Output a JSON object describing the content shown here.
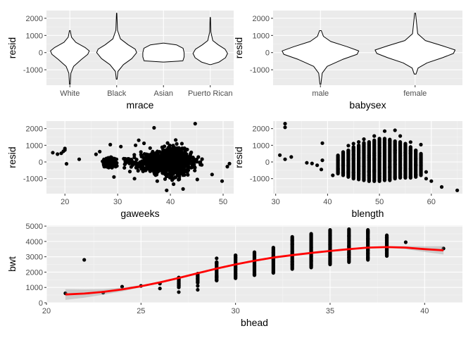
{
  "colors": {
    "panel_bg": "#ebebeb",
    "grid_major": "#ffffff",
    "grid_minor": "#f5f5f5",
    "tick_text": "#4d4d4d",
    "point": "#000000",
    "smooth_line": "#ff0000",
    "ribbon": "#999999"
  },
  "chart_data": [
    {
      "id": "mrace",
      "type": "violin",
      "xlabel": "mrace",
      "ylabel": "resid",
      "categories": [
        "White",
        "Black",
        "Asian",
        "Puerto Rican"
      ],
      "ylim": [
        -1900,
        2450
      ],
      "yticks": [
        -1000,
        0,
        1000,
        2000
      ],
      "grid": true,
      "violins": [
        {
          "category": "White",
          "min": -1850,
          "max": 1280,
          "profile": [
            [
              -1850,
              0.02
            ],
            [
              -1200,
              0.05
            ],
            [
              -800,
              0.18
            ],
            [
              -400,
              0.55
            ],
            [
              -100,
              0.85
            ],
            [
              100,
              0.92
            ],
            [
              300,
              0.72
            ],
            [
              600,
              0.28
            ],
            [
              900,
              0.08
            ],
            [
              1280,
              0.02
            ]
          ]
        },
        {
          "category": "Black",
          "min": -1550,
          "max": 2300,
          "profile": [
            [
              -1550,
              0.02
            ],
            [
              -1100,
              0.06
            ],
            [
              -700,
              0.32
            ],
            [
              -350,
              0.72
            ],
            [
              0,
              0.95
            ],
            [
              200,
              0.88
            ],
            [
              450,
              0.55
            ],
            [
              800,
              0.18
            ],
            [
              1300,
              0.04
            ],
            [
              2300,
              0.01
            ]
          ]
        },
        {
          "category": "Asian",
          "min": -550,
          "max": 550,
          "profile": [
            [
              -550,
              0.02
            ],
            [
              -480,
              0.92
            ],
            [
              -250,
              0.98
            ],
            [
              0,
              0.98
            ],
            [
              250,
              0.93
            ],
            [
              450,
              0.62
            ],
            [
              550,
              0.02
            ]
          ]
        },
        {
          "category": "Puerto Rican",
          "min": -700,
          "max": 2050,
          "profile": [
            [
              -700,
              0.02
            ],
            [
              -550,
              0.42
            ],
            [
              -300,
              0.72
            ],
            [
              -50,
              0.82
            ],
            [
              200,
              0.7
            ],
            [
              450,
              0.38
            ],
            [
              700,
              0.12
            ],
            [
              1200,
              0.03
            ],
            [
              2050,
              0.01
            ]
          ]
        }
      ]
    },
    {
      "id": "babysex",
      "type": "violin",
      "xlabel": "babysex",
      "ylabel": "resid",
      "categories": [
        "male",
        "female"
      ],
      "ylim": [
        -1900,
        2450
      ],
      "yticks": [
        -1000,
        0,
        1000,
        2000
      ],
      "grid": true,
      "violins": [
        {
          "category": "male",
          "min": -1850,
          "max": 1280,
          "profile": [
            [
              -1850,
              0.01
            ],
            [
              -1200,
              0.04
            ],
            [
              -800,
              0.16
            ],
            [
              -400,
              0.52
            ],
            [
              -100,
              0.86
            ],
            [
              100,
              0.9
            ],
            [
              350,
              0.62
            ],
            [
              650,
              0.24
            ],
            [
              950,
              0.07
            ],
            [
              1280,
              0.02
            ]
          ]
        },
        {
          "category": "female",
          "min": -1250,
          "max": 2300,
          "profile": [
            [
              -1250,
              0.02
            ],
            [
              -900,
              0.07
            ],
            [
              -600,
              0.28
            ],
            [
              -300,
              0.64
            ],
            [
              -50,
              0.9
            ],
            [
              150,
              0.94
            ],
            [
              400,
              0.64
            ],
            [
              700,
              0.24
            ],
            [
              1100,
              0.06
            ],
            [
              2300,
              0.01
            ]
          ]
        }
      ]
    },
    {
      "id": "gaweeks",
      "type": "scatter",
      "xlabel": "gaweeks",
      "ylabel": "resid",
      "xlim": [
        16.5,
        52
      ],
      "ylim": [
        -1900,
        2450
      ],
      "xticks": [
        20,
        30,
        40,
        50
      ],
      "yticks": [
        -1000,
        0,
        1000,
        2000
      ],
      "grid": true,
      "points": [
        [
          17.7,
          560
        ],
        [
          18.6,
          470
        ],
        [
          19.3,
          520
        ],
        [
          19.7,
          640
        ],
        [
          20.0,
          810
        ],
        [
          20.0,
          720
        ],
        [
          20.3,
          -110
        ],
        [
          22.7,
          160
        ],
        [
          25.9,
          460
        ],
        [
          26.6,
          620
        ],
        [
          28.6,
          1040
        ],
        [
          30.6,
          920
        ],
        [
          33.4,
          1000
        ],
        [
          34.0,
          1300
        ],
        [
          35.0,
          1120
        ],
        [
          36.9,
          2050
        ],
        [
          41.2,
          1080
        ],
        [
          41.0,
          1320
        ],
        [
          44.7,
          2300
        ],
        [
          39.3,
          -1700
        ],
        [
          42.4,
          -1620
        ],
        [
          40.6,
          -1330
        ],
        [
          37.5,
          -1150
        ],
        [
          45.1,
          -1050
        ],
        [
          49.8,
          -1150
        ],
        [
          29.3,
          -900
        ],
        [
          33.2,
          -1000
        ],
        [
          47.9,
          -750
        ],
        [
          50.8,
          -280
        ],
        [
          51.2,
          -100
        ]
      ],
      "dense_regions": [
        {
          "x": [
            30,
            47
          ],
          "y": [
            -650,
            680
          ]
        },
        {
          "x": [
            27,
            30
          ],
          "y": [
            -350,
            300
          ]
        },
        {
          "x": [
            34,
            45
          ],
          "y": [
            -1000,
            1000
          ]
        },
        {
          "x": [
            37,
            44
          ],
          "y": [
            -1150,
            1200
          ]
        }
      ]
    },
    {
      "id": "blength",
      "type": "scatter",
      "xlabel": "blength",
      "ylabel": "resid",
      "xlim": [
        29.5,
        66
      ],
      "ylim": [
        -1900,
        2450
      ],
      "xticks": [
        30,
        40,
        50,
        60
      ],
      "yticks": [
        -1000,
        0,
        1000,
        2000
      ],
      "grid": true,
      "points": [
        [
          30.8,
          410
        ],
        [
          31.8,
          2300
        ],
        [
          31.8,
          2080
        ],
        [
          31.8,
          160
        ],
        [
          33.0,
          300
        ],
        [
          36.0,
          -50
        ],
        [
          37.0,
          -90
        ],
        [
          38.0,
          -200
        ],
        [
          38.8,
          -450
        ],
        [
          39.0,
          100
        ],
        [
          39.0,
          1130
        ],
        [
          41.0,
          -800
        ],
        [
          44.0,
          980
        ],
        [
          45.0,
          1100
        ],
        [
          46.0,
          1200
        ],
        [
          47.0,
          1370
        ],
        [
          49.0,
          1560
        ],
        [
          51.0,
          1850
        ],
        [
          53.0,
          1900
        ],
        [
          54.0,
          1560
        ],
        [
          56.0,
          1190
        ],
        [
          58.0,
          1040
        ],
        [
          59.0,
          -600
        ],
        [
          59.0,
          -1000
        ],
        [
          60.0,
          -1150
        ],
        [
          62.0,
          -1500
        ],
        [
          65.0,
          -1700
        ]
      ],
      "columns": [
        {
          "x": 42,
          "y": [
            -700,
            400
          ]
        },
        {
          "x": 43,
          "y": [
            -800,
            600
          ]
        },
        {
          "x": 44,
          "y": [
            -900,
            700
          ]
        },
        {
          "x": 45,
          "y": [
            -1000,
            900
          ]
        },
        {
          "x": 46,
          "y": [
            -1050,
            1000
          ]
        },
        {
          "x": 47,
          "y": [
            -1100,
            1150
          ]
        },
        {
          "x": 48,
          "y": [
            -1150,
            1200
          ]
        },
        {
          "x": 49,
          "y": [
            -1150,
            1300
          ]
        },
        {
          "x": 50,
          "y": [
            -1150,
            1400
          ]
        },
        {
          "x": 51,
          "y": [
            -1100,
            1400
          ]
        },
        {
          "x": 52,
          "y": [
            -1100,
            1350
          ]
        },
        {
          "x": 53,
          "y": [
            -1000,
            1250
          ]
        },
        {
          "x": 54,
          "y": [
            -950,
            1200
          ]
        },
        {
          "x": 55,
          "y": [
            -950,
            1100
          ]
        },
        {
          "x": 56,
          "y": [
            -950,
            900
          ]
        },
        {
          "x": 57,
          "y": [
            -900,
            700
          ]
        },
        {
          "x": 58,
          "y": [
            -800,
            500
          ]
        }
      ]
    },
    {
      "id": "bhead",
      "type": "scatter",
      "xlabel": "bhead",
      "ylabel": "bwt",
      "xlim": [
        20,
        42
      ],
      "ylim": [
        0,
        5050
      ],
      "xticks": [
        20,
        25,
        30,
        35,
        40
      ],
      "yticks": [
        0,
        1000,
        2000,
        3000,
        4000,
        5000
      ],
      "grid": true,
      "points": [
        [
          21,
          620
        ],
        [
          22,
          2800
        ],
        [
          23,
          660
        ],
        [
          24,
          1050
        ],
        [
          25,
          1100
        ],
        [
          26,
          1250
        ],
        [
          26,
          930
        ],
        [
          27,
          700
        ],
        [
          27,
          1000
        ],
        [
          28,
          850
        ],
        [
          28,
          1100
        ],
        [
          29,
          2900
        ],
        [
          29,
          1700
        ],
        [
          41,
          3540
        ],
        [
          39,
          3950
        ]
      ],
      "columns": [
        {
          "x": 27,
          "y": [
            1050,
            1650
          ]
        },
        {
          "x": 28,
          "y": [
            1300,
            1900
          ]
        },
        {
          "x": 29,
          "y": [
            1450,
            2650
          ]
        },
        {
          "x": 30,
          "y": [
            1600,
            3100
          ]
        },
        {
          "x": 31,
          "y": [
            1800,
            3300
          ]
        },
        {
          "x": 32,
          "y": [
            1950,
            3600
          ]
        },
        {
          "x": 33,
          "y": [
            2200,
            4300
          ]
        },
        {
          "x": 34,
          "y": [
            2300,
            4500
          ]
        },
        {
          "x": 35,
          "y": [
            2500,
            4750
          ]
        },
        {
          "x": 36,
          "y": [
            2650,
            4800
          ]
        },
        {
          "x": 37,
          "y": [
            2800,
            4750
          ]
        },
        {
          "x": 38,
          "y": [
            3050,
            4400
          ]
        }
      ],
      "smooth": [
        [
          21,
          540
        ],
        [
          22,
          600
        ],
        [
          23,
          710
        ],
        [
          24,
          870
        ],
        [
          25,
          1080
        ],
        [
          26,
          1330
        ],
        [
          27,
          1620
        ],
        [
          28,
          1930
        ],
        [
          29,
          2230
        ],
        [
          30,
          2500
        ],
        [
          31,
          2740
        ],
        [
          32,
          2950
        ],
        [
          33,
          3110
        ],
        [
          34,
          3250
        ],
        [
          35,
          3380
        ],
        [
          36,
          3500
        ],
        [
          37,
          3600
        ],
        [
          38,
          3630
        ],
        [
          39,
          3600
        ],
        [
          40,
          3500
        ],
        [
          41,
          3420
        ]
      ],
      "ribbon_halfwidth": [
        [
          21,
          350
        ],
        [
          22,
          270
        ],
        [
          23,
          180
        ],
        [
          24,
          120
        ],
        [
          25,
          70
        ],
        [
          26,
          50
        ],
        [
          27,
          40
        ],
        [
          28,
          30
        ],
        [
          29,
          25
        ],
        [
          30,
          20
        ],
        [
          31,
          20
        ],
        [
          32,
          20
        ],
        [
          33,
          20
        ],
        [
          34,
          20
        ],
        [
          35,
          20
        ],
        [
          36,
          22
        ],
        [
          37,
          30
        ],
        [
          38,
          50
        ],
        [
          39,
          100
        ],
        [
          40,
          180
        ],
        [
          41,
          270
        ]
      ]
    }
  ]
}
